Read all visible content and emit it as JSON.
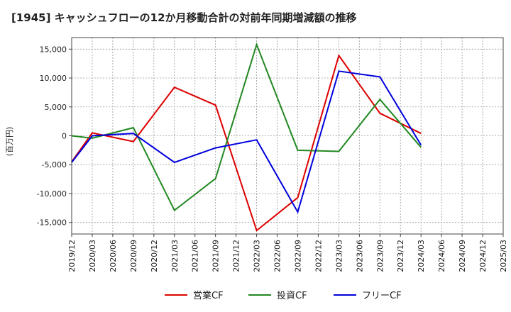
{
  "chart_data": {
    "type": "line",
    "title": "[1945]  キャッシュフローの12か月移動合計の対前年同期増減額の推移",
    "ylabel": "(百万円)",
    "xlabel": "",
    "ylim": [
      -17000,
      17000
    ],
    "yticks": [
      15000,
      10000,
      5000,
      0,
      -5000,
      -10000,
      -15000
    ],
    "ytick_labels": [
      "15,000",
      "10,000",
      "5,000",
      "0",
      "-5,000",
      "-10,000",
      "-15,000"
    ],
    "x_labels": [
      "2019/12",
      "2020/03",
      "2020/06",
      "2020/09",
      "2020/12",
      "2021/03",
      "2021/06",
      "2021/09",
      "2021/12",
      "2022/03",
      "2022/06",
      "2022/09",
      "2022/12",
      "2023/03",
      "2023/06",
      "2023/09",
      "2023/12",
      "2024/03",
      "2024/06",
      "2024/09",
      "2024/12",
      "2025/03"
    ],
    "grid": true,
    "legend_position": "bottom",
    "series": [
      {
        "name": "営業CF",
        "color": "#dd0000",
        "points": [
          {
            "x": 0,
            "y": -4500
          },
          {
            "x": 1,
            "y": 500
          },
          {
            "x": 3,
            "y": -1000
          },
          {
            "x": 5,
            "y": 8400
          },
          {
            "x": 7,
            "y": 5300
          },
          {
            "x": 9,
            "y": -16400
          },
          {
            "x": 11,
            "y": -10700
          },
          {
            "x": 13,
            "y": 13900
          },
          {
            "x": 15,
            "y": 3900
          },
          {
            "x": 17,
            "y": 400
          }
        ]
      },
      {
        "name": "投資CF",
        "color": "#228822",
        "points": [
          {
            "x": 0,
            "y": 0
          },
          {
            "x": 1,
            "y": -400
          },
          {
            "x": 3,
            "y": 1400
          },
          {
            "x": 5,
            "y": -12900
          },
          {
            "x": 7,
            "y": -7400
          },
          {
            "x": 9,
            "y": 15800
          },
          {
            "x": 11,
            "y": -2500
          },
          {
            "x": 13,
            "y": -2700
          },
          {
            "x": 15,
            "y": 6300
          },
          {
            "x": 17,
            "y": -2000
          }
        ]
      },
      {
        "name": "フリーCF",
        "color": "#0000dd",
        "points": [
          {
            "x": 0,
            "y": -4600
          },
          {
            "x": 1,
            "y": 0
          },
          {
            "x": 3,
            "y": 400
          },
          {
            "x": 5,
            "y": -4600
          },
          {
            "x": 7,
            "y": -2100
          },
          {
            "x": 9,
            "y": -700
          },
          {
            "x": 11,
            "y": -13200
          },
          {
            "x": 13,
            "y": 11200
          },
          {
            "x": 15,
            "y": 10200
          },
          {
            "x": 17,
            "y": -1600
          }
        ]
      }
    ]
  }
}
